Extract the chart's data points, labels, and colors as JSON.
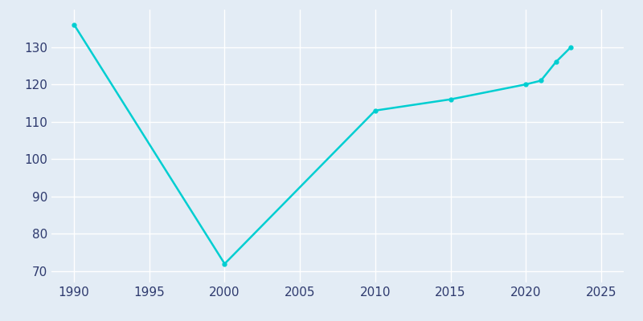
{
  "years": [
    1990,
    2000,
    2010,
    2015,
    2020,
    2021,
    2022,
    2023
  ],
  "population": [
    136,
    72,
    113,
    116,
    120,
    121,
    126,
    130
  ],
  "line_color": "#00CED1",
  "marker": "o",
  "marker_size": 3.5,
  "bg_color": "#E3ECF5",
  "plot_bg_color": "#E3ECF5",
  "grid_color": "#FFFFFF",
  "tick_color": "#2E3A6E",
  "ylim": [
    67,
    140
  ],
  "xlim": [
    1988.5,
    2026.5
  ],
  "yticks": [
    70,
    80,
    90,
    100,
    110,
    120,
    130
  ],
  "xticks": [
    1990,
    1995,
    2000,
    2005,
    2010,
    2015,
    2020,
    2025
  ],
  "figsize": [
    8.0,
    4.0
  ],
  "dpi": 100
}
